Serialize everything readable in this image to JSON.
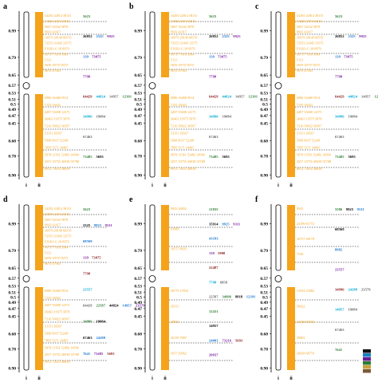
{
  "axis_labels": [
    "0.99",
    "0.79",
    "0.65",
    "0.57",
    "0.53",
    "0.51",
    "0.5",
    "0.49",
    "0.47",
    "0.45",
    "0.68",
    "0.78",
    "0.90"
  ],
  "col_labels": [
    "i",
    "ii"
  ],
  "colors": {
    "orange": "#f5a31a",
    "green": "#2e7d32",
    "blue": "#1976d2",
    "cyan": "#00a8d6",
    "purple": "#7b1fa2",
    "darkred": "#8b1a1a",
    "black": "#000000",
    "grey": "#666666"
  },
  "legend_colors": [
    "#111111",
    "#1a7fbf",
    "#6a1b9a",
    "#2e7d32",
    "#c9a13a",
    "#7b5a3a"
  ],
  "panels": [
    {
      "letter": "a",
      "upper_labels": [
        "34292 42814 38131",
        "51668 24934 6816",
        "5667 34162 5878",
        "9943 42417",
        "10979 28149 66576",
        "73553 31845 13575",
        "F19Ji3-C-18 8979",
        "49737 7816 3994",
        "5121",
        "5659 18757 8375",
        "9670 47963"
      ],
      "lower_labels": [
        "6986 16468 5914",
        "7155 16022",
        "4497 55698 12375",
        "36463 19575 5878",
        "7216 58822 36587",
        "31151 36567",
        "5968 8937 52248",
        "7895 5271 34465",
        "5878 11561 52482 14994",
        "4557 19755 26938 35788",
        "6912 73655 26658"
      ],
      "right_annots": [
        [
          "5623"
        ],
        [
          "26852",
          "2325",
          "9925"
        ],
        [
          "139",
          "73075"
        ],
        [
          "7798"
        ],
        [
          "64429",
          "44824",
          "14957",
          "12391"
        ],
        [
          "34996",
          "19084"
        ],
        [
          "67463"
        ],
        [
          "73485",
          "5693"
        ]
      ]
    },
    {
      "letter": "b",
      "upper_labels": [
        "34292 42814 38131",
        "51668 24934 6816",
        "5667 34162 5878",
        "9943 42417",
        "10979 28149 66576",
        "73553 31845 13575",
        "F19Ji3-C-18 8979",
        "49737 7816 3994",
        "5121",
        "5659 18757 8375",
        "9670 47963"
      ],
      "lower_labels": [
        "6986 16468 5914",
        "7155 16022",
        "4497 55698 12375",
        "36463 19575 5878",
        "7216 58822 36587",
        "31151 36567",
        "5968 8937 52248",
        "7895 5271 34465",
        "5878 11561 52482 14994",
        "4557 19755 26938 35788",
        "6912 73655 26658"
      ],
      "right_annots": [
        [
          "5623"
        ],
        [
          "26852",
          "2325",
          "9925"
        ],
        [
          "139",
          "73075"
        ],
        [
          "7798"
        ],
        [
          "64429",
          "44824",
          "14957",
          "12391"
        ],
        [
          "34996",
          "19084"
        ],
        [
          "67463"
        ],
        [
          "73485",
          "5693"
        ]
      ]
    },
    {
      "letter": "c",
      "upper_labels": [
        "34292 42814 38131",
        "51668 24934 6816",
        "5667 34162 5878",
        "9943 42417",
        "10979 28149 66576",
        "73553 31845 13575",
        "F19Ji3-C-18 8979",
        "49737 7816 3994",
        "5121",
        "5659 18757 8375",
        "9670 47963"
      ],
      "lower_labels": [
        "6986 16468 5914",
        "7155 16022",
        "4497 55698 12375",
        "36463 19575 5878",
        "7216 58822 36587",
        "31151 36567",
        "5968 8937 52248",
        "7895 5271 34465",
        "5878 11561 52482 14994",
        "4557 19755 26938 35788",
        "6912 73655 26658"
      ],
      "right_annots": [
        [
          "5623"
        ],
        [
          "26852",
          "2325",
          "9925"
        ],
        [
          "139",
          "73075"
        ],
        [
          "7798"
        ],
        [
          "64429",
          "44824",
          "14957",
          "12391"
        ],
        [
          "34996",
          "19084"
        ],
        [
          "67463"
        ],
        [
          "73485",
          "5693"
        ]
      ]
    },
    {
      "letter": "d",
      "upper_labels": [
        "34292 42814 38131",
        "63598 24934 6816",
        "5667 34162 5878",
        "9943 42417",
        "10979 28149 66576",
        "73553 31845 13575",
        "F19Ji3-C-18 8979",
        "49737 7816 3994",
        "5121",
        "5659 18757 8375",
        "9670 47963"
      ],
      "lower_labels": [
        "6986 16468 5914",
        "7155 16022",
        "4497 55698 12375",
        "36463 19575 5878",
        "7216 58822 36587",
        "31151 36567",
        "5968 8937 52248",
        "7895 5271 34465",
        "5878 11561 52482 14994",
        "4557 19755 26938 35788",
        "6912 73655 26658"
      ],
      "right_annots": [
        [
          "5623"
        ],
        [
          "2325",
          "9925",
          "9311"
        ],
        [
          "68569"
        ],
        [
          "139",
          "73075"
        ],
        [
          "7798"
        ],
        [
          "23557"
        ],
        [
          "64429",
          "22587",
          "44824",
          "14957",
          "23579"
        ],
        [
          "34996",
          "19084"
        ],
        [
          "67463",
          "24288"
        ],
        [
          "7641",
          "73485",
          "5693"
        ]
      ]
    },
    {
      "letter": "e",
      "upper_labels": [
        "9943 26852",
        "61668",
        "18757 8835"
      ],
      "lower_labels": [
        "58776 13934",
        "29311",
        "28823",
        "36139 7897",
        "4557 39962"
      ],
      "right_annots": [
        [
          "21835"
        ],
        [
          "35914",
          "9925",
          "9311"
        ],
        [
          "43183"
        ],
        [
          "139",
          "5908"
        ],
        [
          "22487"
        ],
        [
          "7798",
          "6858"
        ],
        [
          "22587",
          "34996",
          "8818",
          "12391"
        ],
        [
          "12431"
        ],
        [
          "14957"
        ],
        [
          "24001",
          "73216",
          "5693"
        ],
        [
          "20937"
        ]
      ]
    },
    {
      "letter": "f",
      "upper_labels": [
        "9943",
        "24199 81772",
        "18757 98178",
        "7330"
      ],
      "lower_labels": [
        "31934 25882",
        "56822",
        "24188 85683",
        "39902",
        "26658 68770"
      ],
      "right_annots": [
        [
          "5586",
          "9925",
          "9311"
        ],
        [
          "68569"
        ],
        [
          "8982"
        ],
        [
          "23557"
        ],
        [
          "34996",
          "24288",
          "23579"
        ],
        [
          "14957",
          "19084"
        ],
        [
          "67463"
        ],
        [
          "7641"
        ]
      ]
    }
  ]
}
